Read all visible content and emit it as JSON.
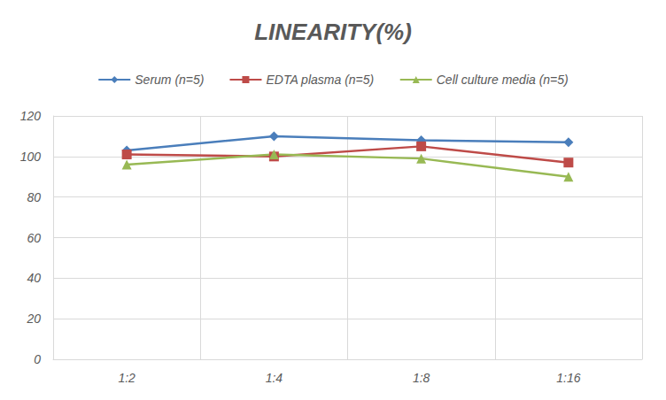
{
  "chart_data": {
    "type": "line",
    "title": "LINEARITY(%)",
    "categories": [
      "1:2",
      "1:4",
      "1:8",
      "1:16"
    ],
    "series": [
      {
        "name": "Serum (n=5)",
        "color": "#4a7ebb",
        "marker": "diamond",
        "values": [
          103,
          110,
          108,
          107
        ]
      },
      {
        "name": "EDTA plasma (n=5)",
        "color": "#be4b48",
        "marker": "square",
        "values": [
          101,
          100,
          105,
          97
        ]
      },
      {
        "name": "Cell culture media (n=5)",
        "color": "#98b954",
        "marker": "triangle",
        "values": [
          96,
          101,
          99,
          90
        ]
      }
    ],
    "ylim": [
      0,
      120
    ],
    "yticks": [
      0,
      20,
      40,
      60,
      80,
      100,
      120
    ],
    "grid": true,
    "legend": "top"
  }
}
